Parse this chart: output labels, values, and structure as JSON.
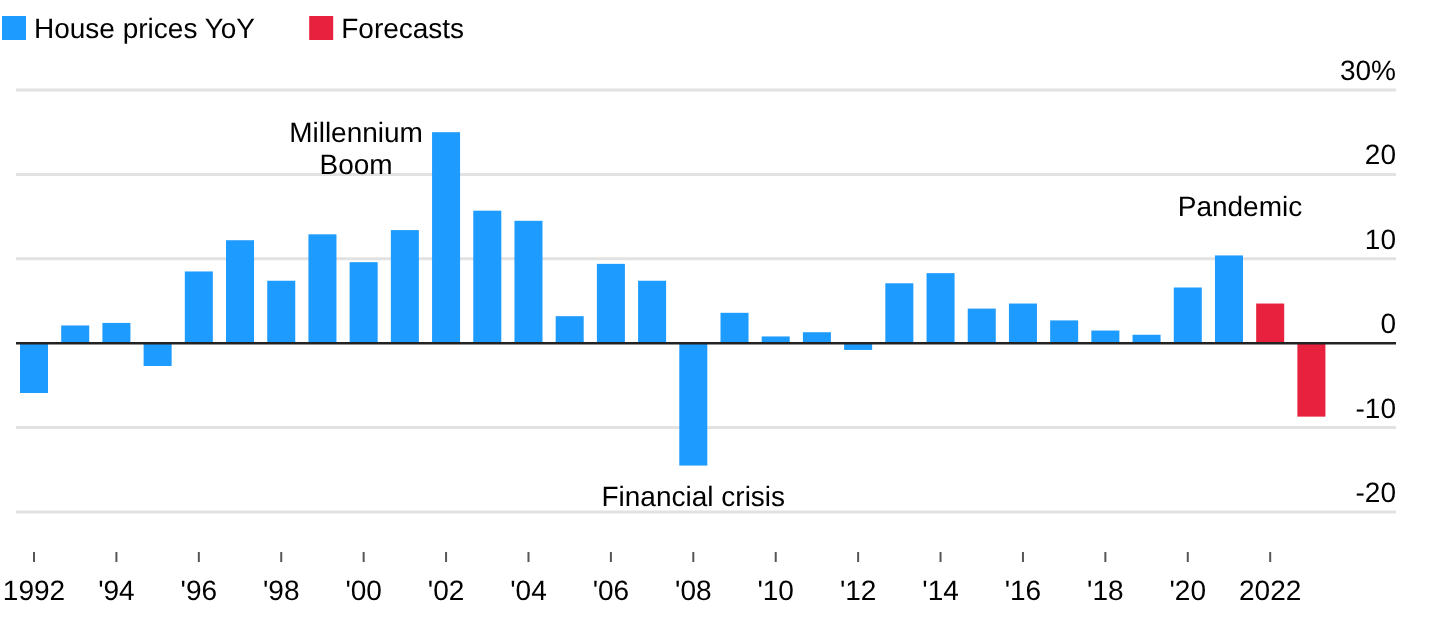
{
  "chart_data": {
    "type": "bar",
    "grid": "y",
    "legend": "top left",
    "categories": [
      "1992",
      null,
      "'94",
      null,
      "'96",
      null,
      "'98",
      null,
      "'00",
      null,
      "'02",
      null,
      "'04",
      null,
      "'06",
      null,
      "'08",
      null,
      "'10",
      null,
      "'12",
      null,
      "'14",
      null,
      "'16",
      null,
      "'18",
      null,
      "'20",
      null,
      "2022",
      null
    ],
    "series": [
      {
        "name": "House prices YoY",
        "color": "#1e9bff",
        "values": [
          -5.9,
          2.1,
          2.4,
          -2.7,
          8.5,
          12.2,
          7.4,
          12.9,
          9.6,
          13.4,
          25.0,
          15.7,
          14.5,
          3.2,
          9.4,
          7.4,
          -14.5,
          3.6,
          0.8,
          1.3,
          -0.8,
          7.1,
          8.3,
          4.1,
          4.7,
          2.7,
          1.5,
          1.0,
          6.6,
          10.4,
          null,
          null
        ]
      },
      {
        "name": "Forecasts",
        "color": "#e8213e",
        "values": [
          null,
          null,
          null,
          null,
          null,
          null,
          null,
          null,
          null,
          null,
          null,
          null,
          null,
          null,
          null,
          null,
          null,
          null,
          null,
          null,
          null,
          null,
          null,
          null,
          null,
          null,
          null,
          null,
          null,
          null,
          4.7,
          -8.7
        ]
      }
    ],
    "ylim": [
      -20,
      30
    ],
    "yticks": [
      {
        "value": 30,
        "label": "30%"
      },
      20,
      10,
      0,
      -10,
      -20
    ],
    "annotations": [
      {
        "text": "Millennium\nBoom",
        "x": "'02",
        "y": 25.0
      },
      {
        "text": "Financial crisis",
        "x": "'08",
        "y": -14.5
      },
      "Pandemic"
    ]
  }
}
